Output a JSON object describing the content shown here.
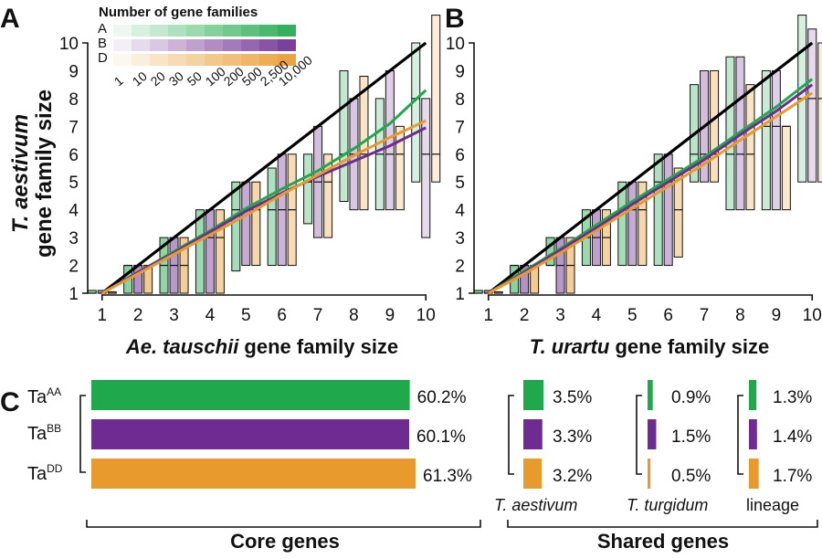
{
  "colors": {
    "A": "#1fa94c",
    "B": "#6e2c92",
    "D": "#e99a2c",
    "line": "#000000"
  },
  "panels": {
    "a": {
      "letter": "A",
      "xlabel_italic": "Ae. tauschii",
      "xlabel_rest": " gene family size"
    },
    "b": {
      "letter": "B",
      "xlabel_italic": "T. urartu",
      "xlabel_rest": " gene family size"
    },
    "c": {
      "letter": "C"
    }
  },
  "ylabel": {
    "line1": "T. aestivum",
    "line2": "gene family size"
  },
  "legend": {
    "title": "Number of gene families",
    "rows": [
      "A",
      "B",
      "D"
    ],
    "ticks": [
      "1",
      "10",
      "20",
      "30",
      "50",
      "100",
      "200",
      "500",
      "2,500",
      "10,000"
    ]
  },
  "chart_data": [
    {
      "type": "box",
      "panel": "A",
      "title": "",
      "xlabel": "Ae. tauschii gene family size",
      "ylabel": "T. aestivum gene family size",
      "xlim": [
        0.6,
        10.4
      ],
      "ylim": [
        1,
        10
      ],
      "xticks": [
        1,
        2,
        3,
        4,
        5,
        6,
        7,
        8,
        9,
        10
      ],
      "yticks": [
        1,
        2,
        3,
        4,
        5,
        6,
        7,
        8,
        9,
        10
      ],
      "series": [
        {
          "name": "A",
          "color_key": "A",
          "boxes": [
            [
              1,
              1.1,
              1
            ],
            [
              2,
              2,
              1
            ],
            [
              3,
              3,
              1
            ],
            [
              4,
              4,
              1
            ],
            [
              5,
              5,
              1.8
            ],
            [
              6,
              5.5,
              2
            ],
            [
              7,
              6,
              3.5
            ],
            [
              8,
              9,
              4.3
            ],
            [
              9,
              8,
              4
            ],
            [
              10,
              10,
              5
            ]
          ],
          "medians": [
            1,
            2,
            2,
            3,
            4,
            4,
            5,
            6,
            6,
            8
          ],
          "smooth": [
            1,
            1.75,
            2.5,
            3.25,
            4.05,
            4.75,
            5.4,
            6.2,
            7.1,
            8.3
          ]
        },
        {
          "name": "B",
          "color_key": "B",
          "boxes": [
            [
              1,
              1.1,
              1
            ],
            [
              2,
              2,
              1
            ],
            [
              3,
              3,
              1
            ],
            [
              4,
              4,
              1
            ],
            [
              5,
              5,
              2
            ],
            [
              6,
              6,
              2
            ],
            [
              7,
              7,
              3
            ],
            [
              8,
              8,
              4
            ],
            [
              9,
              9,
              4
            ],
            [
              10,
              8,
              3
            ]
          ],
          "medians": [
            1,
            2,
            2,
            3,
            4,
            4,
            5,
            6,
            6,
            6
          ],
          "smooth": [
            1,
            1.75,
            2.45,
            3.2,
            3.95,
            4.6,
            5.2,
            5.75,
            6.3,
            6.95
          ]
        },
        {
          "name": "D",
          "color_key": "D",
          "boxes": [
            [
              1,
              1.05,
              1
            ],
            [
              2,
              2,
              1
            ],
            [
              3,
              3,
              1
            ],
            [
              4,
              4,
              1
            ],
            [
              5,
              5,
              2
            ],
            [
              6,
              6,
              2
            ],
            [
              7,
              6,
              3
            ],
            [
              8,
              8.8,
              4
            ],
            [
              9,
              7,
              4
            ],
            [
              10,
              11,
              5
            ]
          ],
          "medians": [
            1,
            2,
            2,
            3,
            4,
            4,
            5,
            6,
            6,
            6
          ],
          "smooth": [
            1,
            1.7,
            2.4,
            3.1,
            3.8,
            4.55,
            5.25,
            5.95,
            6.6,
            7.2
          ]
        }
      ],
      "identity_line": [
        [
          1,
          1
        ],
        [
          10,
          10
        ]
      ]
    },
    {
      "type": "box",
      "panel": "B",
      "title": "",
      "xlabel": "T. urartu gene family size",
      "ylabel": "T. aestivum gene family size",
      "xlim": [
        0.6,
        10.4
      ],
      "ylim": [
        1,
        10
      ],
      "xticks": [
        1,
        2,
        3,
        4,
        5,
        6,
        7,
        8,
        9,
        10
      ],
      "yticks": [
        1,
        2,
        3,
        4,
        5,
        6,
        7,
        8,
        9,
        10
      ],
      "series": [
        {
          "name": "A",
          "color_key": "A",
          "boxes": [
            [
              1,
              1.1,
              1
            ],
            [
              2,
              2,
              1
            ],
            [
              3,
              3,
              2
            ],
            [
              4,
              4,
              2
            ],
            [
              5,
              5,
              2
            ],
            [
              6,
              6,
              2
            ],
            [
              7,
              8.5,
              5
            ],
            [
              8,
              9.5,
              4
            ],
            [
              9,
              9,
              4
            ],
            [
              10,
              11,
              5
            ]
          ],
          "medians": [
            1,
            2,
            2,
            3,
            4,
            5,
            6,
            6,
            7,
            8
          ],
          "smooth": [
            1,
            1.8,
            2.6,
            3.45,
            4.3,
            5.1,
            5.9,
            6.8,
            7.7,
            8.7
          ]
        },
        {
          "name": "B",
          "color_key": "B",
          "boxes": [
            [
              1,
              1.1,
              1
            ],
            [
              2,
              2,
              1
            ],
            [
              3,
              3,
              1
            ],
            [
              4,
              4,
              2
            ],
            [
              5,
              5,
              2
            ],
            [
              6,
              6,
              2
            ],
            [
              7,
              9,
              5
            ],
            [
              8,
              9.5,
              4
            ],
            [
              9,
              9,
              4
            ],
            [
              10,
              10.5,
              5
            ]
          ],
          "medians": [
            1,
            2,
            2,
            3,
            4,
            5,
            6,
            6,
            7,
            8
          ],
          "smooth": [
            1,
            1.75,
            2.55,
            3.35,
            4.2,
            5,
            5.8,
            6.7,
            7.55,
            8.5
          ]
        },
        {
          "name": "D",
          "color_key": "D",
          "boxes": [
            [
              1,
              1.05,
              1
            ],
            [
              2,
              2,
              1
            ],
            [
              3,
              3,
              1
            ],
            [
              4,
              4,
              2
            ],
            [
              5,
              5,
              2
            ],
            [
              6,
              5.5,
              2.3
            ],
            [
              7,
              9,
              5
            ],
            [
              8,
              8.5,
              4
            ],
            [
              9,
              7,
              4
            ],
            [
              10,
              10,
              5
            ]
          ],
          "medians": [
            1,
            2,
            2,
            3,
            4,
            4,
            6,
            6,
            7,
            8
          ],
          "smooth": [
            1,
            1.7,
            2.45,
            3.25,
            4.05,
            4.85,
            5.65,
            6.5,
            7.35,
            8.2
          ]
        }
      ],
      "identity_line": [
        [
          1,
          1
        ],
        [
          10,
          10
        ]
      ]
    },
    {
      "type": "bar",
      "panel": "C",
      "section": "Core genes",
      "categories": [
        "TaAA",
        "TaBB",
        "TaDD"
      ],
      "values": [
        60.2,
        60.1,
        61.3
      ],
      "value_labels": [
        "60.2%",
        "60.1%",
        "61.3%"
      ],
      "xlim": [
        0,
        61.3
      ]
    },
    {
      "type": "bar",
      "panel": "C",
      "section": "Shared genes",
      "groups": [
        {
          "name": "T. aestivum",
          "italic": true,
          "values": [
            3.5,
            3.3,
            3.2
          ],
          "value_labels": [
            "3.5%",
            "3.3%",
            "3.2%"
          ]
        },
        {
          "name": "T. turgidum",
          "italic": true,
          "values": [
            0.9,
            1.5,
            0.5
          ],
          "value_labels": [
            "0.9%",
            "1.5%",
            "0.5%"
          ]
        },
        {
          "name": "lineage",
          "italic": false,
          "values": [
            1.3,
            1.4,
            1.7
          ],
          "value_labels": [
            "1.3%",
            "1.4%",
            "1.7%"
          ]
        }
      ]
    }
  ],
  "panel_c": {
    "rows": [
      {
        "base": "Ta",
        "sup": "AA"
      },
      {
        "base": "Ta",
        "sup": "BB"
      },
      {
        "base": "Ta",
        "sup": "DD"
      }
    ],
    "core_label": "Core genes",
    "shared_label": "Shared genes"
  }
}
